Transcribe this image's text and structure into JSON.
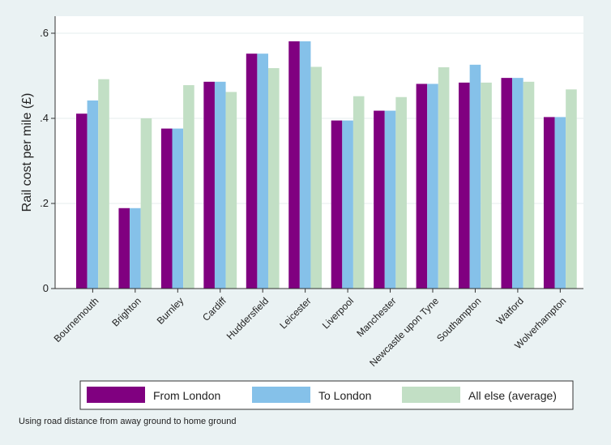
{
  "chart_data": {
    "type": "bar",
    "ylabel": "Rail cost per mile (£)",
    "xlabel": "",
    "ylim": [
      0,
      0.64
    ],
    "yticks": [
      0,
      0.2,
      0.4,
      0.6
    ],
    "ytick_labels": [
      "0",
      ".2",
      ".4",
      ".6"
    ],
    "grid": true,
    "legend_position": "bottom",
    "categories": [
      "Bournemouth",
      "Brighton",
      "Burnley",
      "Cardiff",
      "Huddersfield",
      "Leicester",
      "Liverpool",
      "Manchester",
      "Newcastle upon Tyne",
      "Southampton",
      "Watford",
      "Wolverhampton"
    ],
    "series": [
      {
        "name": "From London",
        "color": "#800080",
        "values": [
          0.411,
          0.189,
          0.376,
          0.486,
          0.552,
          0.581,
          0.395,
          0.418,
          0.481,
          0.484,
          0.495,
          0.403
        ]
      },
      {
        "name": "To London",
        "color": "#85c1e9",
        "values": [
          0.442,
          0.189,
          0.376,
          0.486,
          0.552,
          0.581,
          0.395,
          0.418,
          0.481,
          0.526,
          0.495,
          0.403
        ]
      },
      {
        "name": "All else (average)",
        "color": "#c2dfc5",
        "values": [
          0.492,
          0.4,
          0.478,
          0.462,
          0.518,
          0.521,
          0.452,
          0.45,
          0.52,
          0.484,
          0.486,
          0.468
        ]
      }
    ]
  },
  "note": "Using road distance from away ground to home ground"
}
